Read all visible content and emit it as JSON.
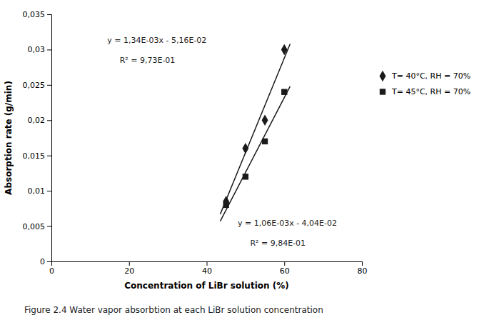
{
  "chart_data": {
    "type": "scatter",
    "x_label": "Concentration of LiBr solution (%)",
    "y_label": "Absorption rate (g/min)",
    "caption": "Figure 2.4 Water vapor absorbtion at each LiBr solution concentration",
    "annotations": [
      "y = 1,34E-03x - 5,16E-02",
      "R² = 9,73E-01",
      "y = 1,06E-03x - 4,04E-02",
      "R² = 9,84E-01"
    ],
    "xlim": [
      0,
      80
    ],
    "ylim": [
      0,
      0.035
    ],
    "xticks": [
      0,
      20,
      40,
      60,
      80
    ],
    "yticks": [
      0,
      {
        "value": 0.005,
        "label": "0,005"
      },
      {
        "value": 0.01,
        "label": "0,01"
      },
      {
        "value": 0.015,
        "label": "0,015"
      },
      {
        "value": 0.02,
        "label": "0,02"
      },
      {
        "value": 0.025,
        "label": "0,025"
      },
      {
        "value": 0.03,
        "label": "0,03"
      },
      {
        "value": 0.035,
        "label": "0,035"
      }
    ],
    "grid": false,
    "legend": "right",
    "series": [
      {
        "name": "T= 40°C, RH = 70%",
        "type": "scatter",
        "marker": "diamond",
        "color": "#1a1a1a",
        "x": [
          45,
          50,
          55,
          60
        ],
        "values": [
          0.0085,
          0.016,
          0.02,
          0.03
        ]
      },
      {
        "name": "T= 45°C, RH = 70%",
        "type": "scatter",
        "marker": "square",
        "color": "#1a1a1a",
        "x": [
          45,
          50,
          55,
          60
        ],
        "values": [
          0.008,
          0.012,
          0.017,
          0.024
        ]
      },
      {
        "type": "line",
        "line_style": "solid",
        "color": "#1a1a1a",
        "x": [
          43.5,
          61.5
        ],
        "values": [
          0.00669,
          0.03081
        ]
      },
      {
        "type": "line",
        "line_style": "solid",
        "color": "#1a1a1a",
        "x": [
          43.5,
          61.5
        ],
        "values": [
          0.00571,
          0.02479
        ]
      }
    ]
  }
}
